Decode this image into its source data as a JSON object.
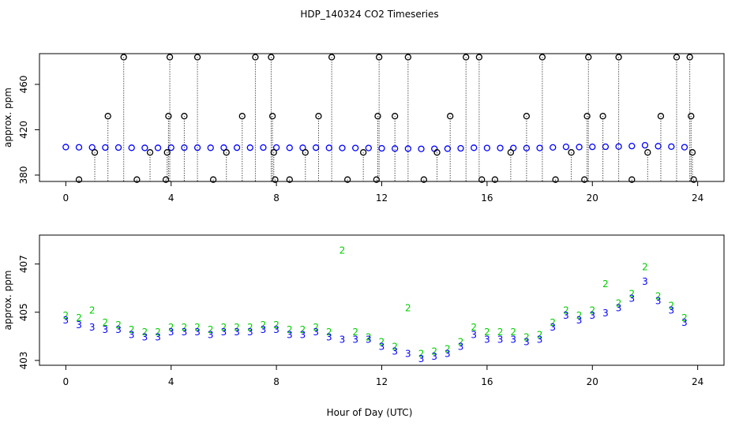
{
  "chart_data": [
    {
      "type": "scatter",
      "title": "HDP_140324  CO2 Timeseries",
      "ylabel": "approx. ppm",
      "xlim": [
        -1,
        25
      ],
      "xticks": [
        0,
        4,
        8,
        12,
        16,
        20,
        24
      ],
      "ylim": [
        374.4,
        487.1
      ],
      "yticks": [
        380,
        420,
        460
      ],
      "x": [
        0,
        0.5,
        1,
        1.5,
        2,
        2.5,
        3,
        3.5,
        4,
        4.5,
        5,
        5.5,
        6,
        6.5,
        7,
        7.5,
        8,
        8.5,
        9,
        9.5,
        10,
        10.5,
        11,
        11.5,
        12,
        12.5,
        13,
        13.5,
        14,
        14.5,
        15,
        15.5,
        16,
        16.5,
        17,
        17.5,
        18,
        18.5,
        19,
        19.5,
        20,
        20.5,
        21,
        21.5,
        22,
        22.5,
        23,
        23.5
      ],
      "series": [
        {
          "color": "#0000ff",
          "values": [
            404.7,
            404.5,
            404.4,
            404.3,
            404.3,
            404.1,
            404.0,
            404.0,
            404.2,
            404.2,
            404.2,
            404.1,
            404.2,
            404.2,
            404.2,
            404.3,
            404.3,
            404.1,
            404.1,
            404.2,
            404.0,
            403.9,
            403.9,
            403.9,
            403.6,
            403.4,
            403.3,
            403.1,
            403.2,
            403.3,
            403.6,
            404.1,
            403.9,
            403.9,
            403.9,
            403.8,
            403.9,
            404.4,
            404.9,
            404.7,
            404.9,
            405.0,
            405.2,
            405.6,
            406.3,
            405.5,
            405.1,
            404.6
          ]
        },
        {
          "color": "#000000",
          "drop_lines": true,
          "x": [
            0.5,
            1.1,
            1.6,
            2.2,
            2.7,
            3.2,
            3.8,
            3.85,
            3.9,
            3.95,
            4.5,
            5.0,
            5.6,
            6.1,
            6.7,
            7.2,
            7.8,
            7.85,
            7.9,
            7.95,
            8.5,
            9.1,
            9.6,
            10.1,
            10.7,
            11.3,
            11.8,
            11.85,
            11.9,
            12.5,
            13.0,
            13.6,
            14.1,
            14.6,
            15.2,
            15.7,
            15.8,
            16.3,
            16.9,
            17.5,
            18.1,
            18.6,
            19.2,
            19.7,
            19.8,
            19.85,
            20.4,
            21.0,
            21.5,
            22.1,
            22.6,
            23.2,
            23.7,
            23.75,
            23.8,
            23.85
          ],
          "values": [
            376,
            400,
            432,
            484,
            376,
            400,
            376,
            400,
            432,
            484,
            432,
            484,
            376,
            400,
            432,
            484,
            484,
            432,
            400,
            376,
            376,
            400,
            432,
            484,
            376,
            400,
            376,
            432,
            484,
            432,
            484,
            376,
            400,
            432,
            484,
            484,
            376,
            376,
            400,
            432,
            484,
            376,
            400,
            376,
            432,
            484,
            432,
            484,
            376,
            400,
            432,
            484,
            484,
            432,
            400,
            376
          ]
        }
      ]
    },
    {
      "type": "scatter",
      "ylabel": "approx. ppm",
      "xlabel": "Hour of Day (UTC)",
      "xlim": [
        -1,
        25
      ],
      "xticks": [
        0,
        4,
        8,
        12,
        16,
        20,
        24
      ],
      "ylim": [
        402.8,
        408.2
      ],
      "yticks": [
        403,
        405,
        407
      ],
      "x": [
        0,
        0.5,
        1,
        1.5,
        2,
        2.5,
        3,
        3.5,
        4,
        4.5,
        5,
        5.5,
        6,
        6.5,
        7,
        7.5,
        8,
        8.5,
        9,
        9.5,
        10,
        10.5,
        11,
        11.5,
        12,
        12.5,
        13,
        13.5,
        14,
        14.5,
        15,
        15.5,
        16,
        16.5,
        17,
        17.5,
        18,
        18.5,
        19,
        19.5,
        20,
        20.5,
        21,
        21.5,
        22,
        22.5,
        23,
        23.5
      ],
      "series": [
        {
          "marker": "2",
          "color": "#00cc00",
          "values": [
            404.9,
            404.8,
            405.1,
            404.6,
            404.5,
            404.3,
            404.2,
            404.2,
            404.4,
            404.4,
            404.4,
            404.3,
            404.4,
            404.4,
            404.4,
            404.5,
            404.5,
            404.3,
            404.3,
            404.4,
            404.2,
            407.6,
            404.2,
            404.0,
            403.8,
            403.6,
            405.2,
            403.3,
            403.4,
            403.5,
            403.8,
            404.4,
            404.2,
            404.2,
            404.2,
            404.0,
            404.1,
            404.6,
            405.1,
            404.9,
            405.1,
            406.2,
            405.4,
            405.8,
            406.9,
            405.7,
            405.3,
            404.8
          ]
        },
        {
          "marker": "3",
          "color": "#0000ff",
          "values": [
            404.7,
            404.5,
            404.4,
            404.3,
            404.3,
            404.1,
            404.0,
            404.0,
            404.2,
            404.2,
            404.2,
            404.1,
            404.2,
            404.2,
            404.2,
            404.3,
            404.3,
            404.1,
            404.1,
            404.2,
            404.0,
            403.9,
            403.9,
            403.9,
            403.6,
            403.4,
            403.3,
            403.1,
            403.2,
            403.3,
            403.6,
            404.1,
            403.9,
            403.9,
            403.9,
            403.8,
            403.9,
            404.4,
            404.9,
            404.7,
            404.9,
            405.0,
            405.2,
            405.6,
            406.3,
            405.5,
            405.1,
            404.6
          ]
        }
      ]
    }
  ]
}
